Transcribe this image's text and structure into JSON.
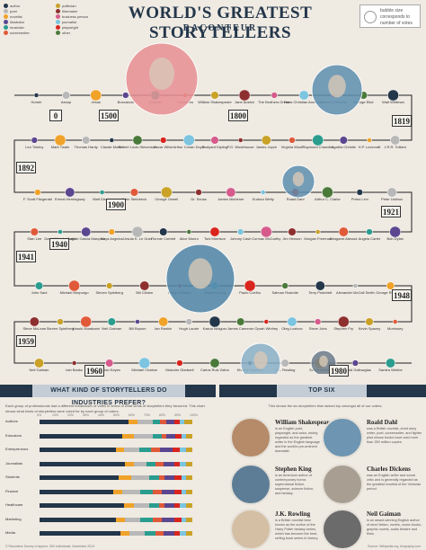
{
  "header": {
    "title": "WORLD'S GREATEST STORYTELLERS",
    "brand": "RACONTEUR",
    "size_note": "bubble size corresponds to number of votes"
  },
  "legend": [
    {
      "label": "author",
      "color": "#23364a"
    },
    {
      "label": "poet",
      "color": "#b8b8b8"
    },
    {
      "label": "novelist",
      "color": "#f0a229"
    },
    {
      "label": "illustrator",
      "color": "#5b4690"
    },
    {
      "label": "musician",
      "color": "#2a9d8f"
    },
    {
      "label": "screenwriter",
      "color": "#e05a3a"
    },
    {
      "label": "politician",
      "color": "#c9a227"
    },
    {
      "label": "filmmaker",
      "color": "#8e2f2f"
    },
    {
      "label": "business person",
      "color": "#d65b8c"
    },
    {
      "label": "journalist",
      "color": "#7cc4e0"
    },
    {
      "label": "playwright",
      "color": "#d9251d"
    },
    {
      "label": "other",
      "color": "#4a7a3a"
    }
  ],
  "timeline": {
    "years": [
      "0",
      "1500",
      "1800",
      "1819",
      "1892",
      "1900",
      "1921",
      "1940",
      "1941",
      "1948",
      "1959",
      "1960",
      "1980"
    ],
    "row1": [
      "Homer",
      "Aesop",
      "Jesus",
      "Boccaccio",
      "Chaucer",
      "Cervantes",
      "William Shakespeare",
      "Jane Austen",
      "The Brothers Grimm",
      "Hans Christian Andersen",
      "Charles Dickens",
      "George Eliot",
      "Walt Whitman"
    ],
    "row2": [
      "J.R.R. Tolkien",
      "H.P. Lovecraft",
      "Agatha Christie",
      "Raymond Chandler",
      "Virginia Woolf",
      "James Joyce",
      "P.G. Wodehouse",
      "Rudyard Kipling",
      "Arthur Conan Doyle",
      "Oscar Wilde",
      "Robert Louis Stevenson",
      "Claude Monet",
      "Thomas Hardy",
      "Mark Twain",
      "Leo Tolstoy"
    ],
    "row3": [
      "F. Scott Fitzgerald",
      "Ernest Hemingway",
      "Walt Disney",
      "John Steinbeck",
      "George Orwell",
      "Dr. Seuss",
      "James Michener",
      "Eudora Welty",
      "Roald Dahl",
      "Arthur C. Clarke",
      "Primo Levi",
      "Peter Ustinov"
    ],
    "row4": [
      "Bob Dylan",
      "Angela Carter",
      "Margaret Atwood",
      "Morgan Freeman",
      "Jim Henson",
      "Cormac McCarthy",
      "Johnny Cash",
      "Toni Morrison",
      "Alice Munro",
      "Ronnie Corbett",
      "Ursula K. Le Guin",
      "Maya Angelou",
      "Gabriel Garcia Marquez",
      "David Attenborough",
      "Stan Lee"
    ],
    "row5": [
      "John Saul",
      "Michael Morpurgo",
      "Steven Spielberg",
      "Bill Clinton",
      "Philip Pullman",
      "Stephen King",
      "Paulo Coelho",
      "Salman Rushdie",
      "Terry Pratchett",
      "Alexander McCall Smith",
      "George RR Martin"
    ],
    "row6": [
      "Morrissey",
      "Kevin Spacey",
      "Stephen Fry",
      "Steve Jobs",
      "Oleg Lozinov",
      "Oprah Winfrey",
      "James Cameron",
      "Kazuo Ishiguro",
      "Hugh Laurie",
      "Ian Rankin",
      "Bill Bryson",
      "Neil Gaiman",
      "Haruki Murakami",
      "Steven Spielberg",
      "Steve McLean"
    ],
    "row7": [
      "Neil Gaiman",
      "Iain Banks",
      "Marian Keyes",
      "Michael Chabon",
      "Malcolm Gladwell",
      "Carlos Ruiz Zafon",
      "Khaled Hosseini",
      "J.K. Rowling",
      "Sarah Waters",
      "M. Todd Gallowglas",
      "Samira Wehbe"
    ]
  },
  "industries": {
    "title": "WHAT KIND OF STORYTELLERS DO INDUSTRIES PREFER?",
    "intro": "Each group of professionals had a different breakdown of votes in terms of what kinds of storytellers they favoured. This chart shows what kinds of storytellers were voted for by each group of voters.",
    "ticks": [
      "0%",
      "10%",
      "20%",
      "30%",
      "40%",
      "50%",
      "60%",
      "70%",
      "80%",
      "90%",
      "100%"
    ],
    "rows": [
      {
        "label": "Authors",
        "segments": [
          58,
          6,
          10,
          5,
          4,
          5,
          4,
          3,
          5
        ]
      },
      {
        "label": "Educators",
        "segments": [
          54,
          8,
          12,
          6,
          3,
          6,
          4,
          3,
          4
        ]
      },
      {
        "label": "Entrepreneurs",
        "segments": [
          50,
          5,
          10,
          8,
          6,
          8,
          5,
          4,
          4
        ]
      },
      {
        "label": "Journalists",
        "segments": [
          56,
          6,
          8,
          6,
          5,
          7,
          4,
          4,
          4
        ]
      },
      {
        "label": "Students",
        "segments": [
          52,
          8,
          12,
          6,
          4,
          6,
          5,
          3,
          4
        ]
      },
      {
        "label": "Finance",
        "segments": [
          48,
          6,
          12,
          8,
          6,
          8,
          5,
          3,
          4
        ]
      },
      {
        "label": "Healthcare",
        "segments": [
          55,
          7,
          10,
          6,
          4,
          6,
          4,
          4,
          4
        ]
      },
      {
        "label": "Marketing",
        "segments": [
          50,
          6,
          10,
          8,
          6,
          8,
          5,
          3,
          4
        ]
      },
      {
        "label": "Media",
        "segments": [
          53,
          6,
          10,
          7,
          5,
          7,
          4,
          4,
          4
        ]
      }
    ],
    "segment_colors": [
      "#23364a",
      "#f0a229",
      "#b8b8b8",
      "#2a9d8f",
      "#e05a3a",
      "#5b4690",
      "#d9251d",
      "#7cc4e0",
      "#c9a227"
    ]
  },
  "top_six": {
    "title": "TOP SIX",
    "note": "This shows the six storytellers that ranked top amongst all of our voters.",
    "items": [
      {
        "name": "William Shakespeare",
        "desc": "is an English poet, playwright, and actor, widely regarded as the greatest writer in the English language and the world's pre-eminent dramatist."
      },
      {
        "name": "Roald Dahl",
        "desc": "was a British novelist, short story writer, poet, screenwriter, and fighter pilot whose books have sold more than 250 million copies."
      },
      {
        "name": "Stephen King",
        "desc": "is an American author of contemporary horror, supernatural fiction, suspense, science fiction, and fantasy."
      },
      {
        "name": "Charles Dickens",
        "desc": "was an English writer and social critic and is generally regarded as the greatest novelist of the Victorian period."
      },
      {
        "name": "J.K. Rowling",
        "desc": "is a British novelist best known as the author of the Harry Potter fantasy series, which has become the best-selling book series in history."
      },
      {
        "name": "Neil Gaiman",
        "desc": "is an award-winning English author of short fiction, novels, comic books, graphic novels, audio theatre and films."
      }
    ]
  },
  "footer": {
    "left": "© Raconteur Survey of approx. 500 individuals, November 2014",
    "right": "Source: Wikipedia.org, biography.com"
  }
}
